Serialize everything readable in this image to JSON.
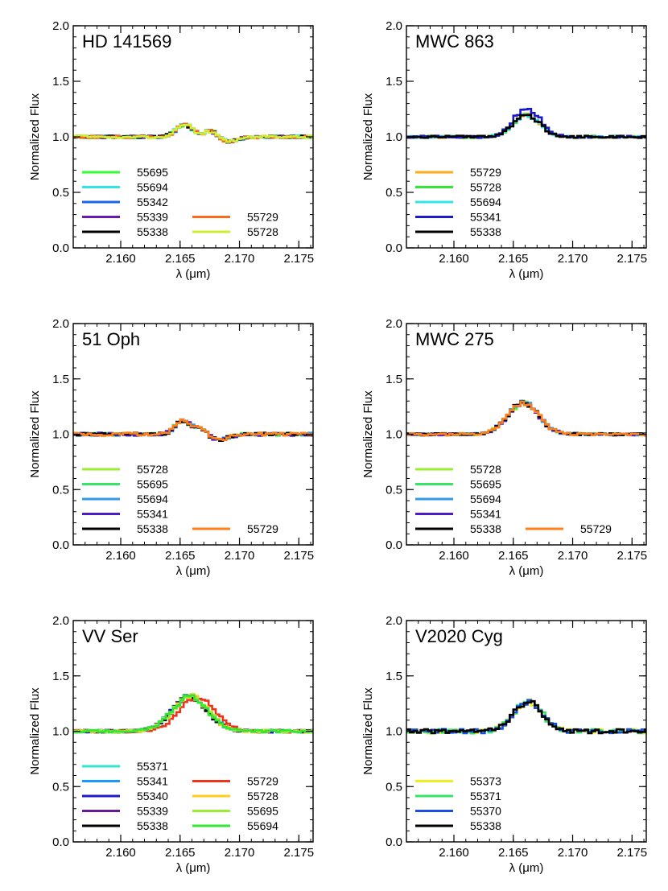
{
  "figure": {
    "ylabel": "Normalized Flux",
    "xlabel": "λ (μm)"
  },
  "chart_data": [
    {
      "type": "line",
      "title": "HD 141569",
      "xlabel": "λ (μm)",
      "ylabel": "Normalized Flux",
      "xlim": [
        2.156,
        2.1762
      ],
      "ylim": [
        0.0,
        2.0
      ],
      "xticks": [
        2.16,
        2.165,
        2.17,
        2.175
      ],
      "xtick_labels": [
        "2.160",
        "2.165",
        "2.170",
        "2.175"
      ],
      "yticks": [
        0.0,
        0.5,
        1.0,
        1.5,
        2.0
      ],
      "ytick_labels": [
        "0.0",
        "0.5",
        "1.0",
        "1.5",
        "2.0"
      ],
      "profile": {
        "kind": "double",
        "peaks": [
          [
            2.1652,
            0.11,
            0.0007
          ],
          [
            2.1675,
            0.08,
            0.0006
          ]
        ],
        "dip": [
          2.1685,
          -0.05,
          0.001
        ],
        "noise": 0.012
      },
      "legend_columns": [
        [
          "55695",
          "55694",
          "55342",
          "55339",
          "55338"
        ],
        [
          "55729",
          "55728"
        ]
      ],
      "series": [
        {
          "name": "55695",
          "color": "#33ff33"
        },
        {
          "name": "55694",
          "color": "#33e6e6"
        },
        {
          "name": "55342",
          "color": "#1a66e6"
        },
        {
          "name": "55339",
          "color": "#6a1ab3"
        },
        {
          "name": "55338",
          "color": "#000000"
        },
        {
          "name": "55729",
          "color": "#ff6a1a"
        },
        {
          "name": "55728",
          "color": "#ccee33"
        }
      ]
    },
    {
      "type": "line",
      "title": "MWC 863",
      "xlabel": "λ (μm)",
      "ylabel": "Normalized Flux",
      "xlim": [
        2.156,
        2.1762
      ],
      "ylim": [
        0.0,
        2.0
      ],
      "xticks": [
        2.16,
        2.165,
        2.17,
        2.175
      ],
      "xtick_labels": [
        "2.160",
        "2.165",
        "2.170",
        "2.175"
      ],
      "yticks": [
        0.0,
        0.5,
        1.0,
        1.5,
        2.0
      ],
      "ytick_labels": [
        "0.0",
        "0.5",
        "1.0",
        "1.5",
        "2.0"
      ],
      "profile": {
        "kind": "single",
        "peaks": [
          [
            2.166,
            0.2,
            0.0011
          ]
        ],
        "noise": 0.01
      },
      "legend_columns": [
        [
          "55729",
          "55728",
          "55694",
          "55341",
          "55338"
        ]
      ],
      "series": [
        {
          "name": "55729",
          "color": "#ffaa1a"
        },
        {
          "name": "55728",
          "color": "#33e633"
        },
        {
          "name": "55694",
          "color": "#33e6e6"
        },
        {
          "name": "55341",
          "color": "#1a1acc",
          "peak_scale": 1.3
        },
        {
          "name": "55338",
          "color": "#000000"
        }
      ]
    },
    {
      "type": "line",
      "title": "51 Oph",
      "xlabel": "λ (μm)",
      "ylabel": "Normalized Flux",
      "xlim": [
        2.156,
        2.1762
      ],
      "ylim": [
        0.0,
        2.0
      ],
      "xticks": [
        2.16,
        2.165,
        2.17,
        2.175
      ],
      "xtick_labels": [
        "2.160",
        "2.165",
        "2.170",
        "2.175"
      ],
      "yticks": [
        0.0,
        0.5,
        1.0,
        1.5,
        2.0
      ],
      "ytick_labels": [
        "0.0",
        "0.5",
        "1.0",
        "1.5",
        "2.0"
      ],
      "profile": {
        "kind": "double",
        "peaks": [
          [
            2.165,
            0.12,
            0.0006
          ],
          [
            2.1665,
            0.07,
            0.0006
          ]
        ],
        "dip": [
          2.168,
          -0.05,
          0.0009
        ],
        "noise": 0.014
      },
      "legend_columns": [
        [
          "55728",
          "55695",
          "55694",
          "55341",
          "55338"
        ],
        [
          "55729"
        ]
      ],
      "series": [
        {
          "name": "55728",
          "color": "#99ee33"
        },
        {
          "name": "55695",
          "color": "#33e666"
        },
        {
          "name": "55694",
          "color": "#3399e6"
        },
        {
          "name": "55341",
          "color": "#4d1acc"
        },
        {
          "name": "55338",
          "color": "#000000"
        },
        {
          "name": "55729",
          "color": "#ff801a"
        }
      ]
    },
    {
      "type": "line",
      "title": "MWC 275",
      "xlabel": "λ (μm)",
      "ylabel": "Normalized Flux",
      "xlim": [
        2.156,
        2.1762
      ],
      "ylim": [
        0.0,
        2.0
      ],
      "xticks": [
        2.16,
        2.165,
        2.17,
        2.175
      ],
      "xtick_labels": [
        "2.160",
        "2.165",
        "2.170",
        "2.175"
      ],
      "yticks": [
        0.0,
        0.5,
        1.0,
        1.5,
        2.0
      ],
      "ytick_labels": [
        "0.0",
        "0.5",
        "1.0",
        "1.5",
        "2.0"
      ],
      "profile": {
        "kind": "single",
        "peaks": [
          [
            2.1657,
            0.28,
            0.0013
          ]
        ],
        "noise": 0.01
      },
      "legend_columns": [
        [
          "55728",
          "55695",
          "55694",
          "55341",
          "55338"
        ],
        [
          "55729"
        ]
      ],
      "series": [
        {
          "name": "55728",
          "color": "#99ee33"
        },
        {
          "name": "55695",
          "color": "#33e666"
        },
        {
          "name": "55694",
          "color": "#3399e6"
        },
        {
          "name": "55341",
          "color": "#4d1acc"
        },
        {
          "name": "55338",
          "color": "#000000"
        },
        {
          "name": "55729",
          "color": "#ff801a"
        }
      ]
    },
    {
      "type": "line",
      "title": "VV Ser",
      "xlabel": "λ (μm)",
      "ylabel": "Normalized Flux",
      "xlim": [
        2.156,
        2.1762
      ],
      "ylim": [
        0.0,
        2.0
      ],
      "xticks": [
        2.16,
        2.165,
        2.17,
        2.175
      ],
      "xtick_labels": [
        "2.160",
        "2.165",
        "2.170",
        "2.175"
      ],
      "yticks": [
        0.0,
        0.5,
        1.0,
        1.5,
        2.0
      ],
      "ytick_labels": [
        "0.0",
        "0.5",
        "1.0",
        "1.5",
        "2.0"
      ],
      "profile": {
        "kind": "single",
        "peaks": [
          [
            2.1657,
            0.31,
            0.0015
          ]
        ],
        "noise": 0.012
      },
      "legend_columns": [
        [
          "55371",
          "55341",
          "55340",
          "55339",
          "55338"
        ],
        [
          "55729",
          "55728",
          "55695",
          "55694"
        ]
      ],
      "series": [
        {
          "name": "55371",
          "color": "#33e6cc"
        },
        {
          "name": "55341",
          "color": "#1a99ff"
        },
        {
          "name": "55340",
          "color": "#1a1acc"
        },
        {
          "name": "55339",
          "color": "#661a99"
        },
        {
          "name": "55338",
          "color": "#000000"
        },
        {
          "name": "55729",
          "color": "#ee331a",
          "shift": 0.0006
        },
        {
          "name": "55728",
          "color": "#ffcc1a"
        },
        {
          "name": "55695",
          "color": "#99ee33"
        },
        {
          "name": "55694",
          "color": "#33e633"
        }
      ]
    },
    {
      "type": "line",
      "title": "V2020 Cyg",
      "xlabel": "λ (μm)",
      "ylabel": "Normalized Flux",
      "xlim": [
        2.156,
        2.1762
      ],
      "ylim": [
        0.0,
        2.0
      ],
      "xticks": [
        2.16,
        2.165,
        2.17,
        2.175
      ],
      "xtick_labels": [
        "2.160",
        "2.165",
        "2.170",
        "2.175"
      ],
      "yticks": [
        0.0,
        0.5,
        1.0,
        1.5,
        2.0
      ],
      "ytick_labels": [
        "0.0",
        "0.5",
        "1.0",
        "1.5",
        "2.0"
      ],
      "profile": {
        "kind": "single",
        "peaks": [
          [
            2.1661,
            0.27,
            0.0012
          ]
        ],
        "noise": 0.02
      },
      "legend_columns": [
        [
          "55373",
          "55371",
          "55370",
          "55338"
        ]
      ],
      "series": [
        {
          "name": "55373",
          "color": "#eeee1a"
        },
        {
          "name": "55371",
          "color": "#33e666"
        },
        {
          "name": "55370",
          "color": "#1a4de6"
        },
        {
          "name": "55338",
          "color": "#000000"
        }
      ]
    }
  ]
}
